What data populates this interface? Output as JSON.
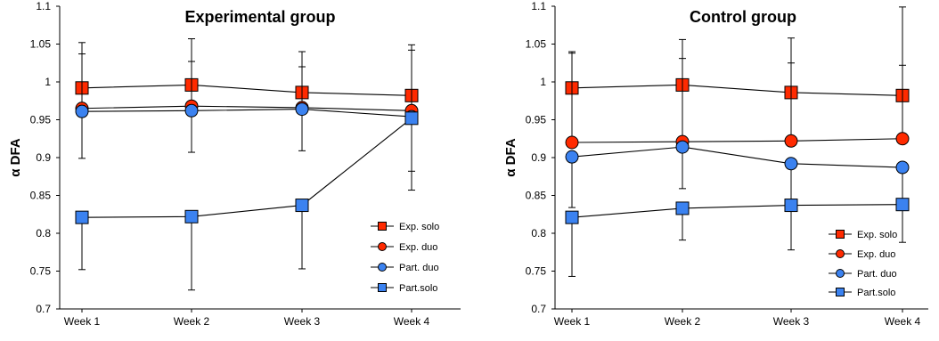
{
  "chart_data": [
    {
      "type": "line",
      "title": "Experimental group",
      "xlabel": "",
      "ylabel": "α DFA",
      "categories": [
        "Week 1",
        "Week 2",
        "Week 3",
        "Week 4"
      ],
      "ylim": [
        0.7,
        1.1
      ],
      "yticks": [
        "0.7",
        "0.75",
        "0.8",
        "0.85",
        "0.9",
        "0.95",
        "1",
        "1.05",
        "1.1"
      ],
      "grid": false,
      "legend_position": "bottom-right",
      "series": [
        {
          "name": "Exp. solo",
          "marker": "square",
          "color": "#ff2a00",
          "values": [
            0.992,
            0.996,
            0.986,
            0.982
          ],
          "error_high": [
            1.052,
            1.057,
            1.04,
            1.049
          ],
          "error_low": [
            0.992,
            0.996,
            0.986,
            0.982
          ]
        },
        {
          "name": "Exp. duo",
          "marker": "circle",
          "color": "#ff2a00",
          "values": [
            0.965,
            0.968,
            0.966,
            0.962
          ],
          "error_high": [
            1.037,
            1.027,
            1.02,
            1.042
          ],
          "error_low": [
            0.965,
            0.968,
            0.966,
            0.962
          ]
        },
        {
          "name": "Part. duo",
          "marker": "circle",
          "color": "#3b82f0",
          "values": [
            0.961,
            0.962,
            0.964,
            0.954
          ],
          "error_high": [
            0.961,
            0.962,
            0.964,
            0.954
          ],
          "error_low": [
            0.899,
            0.907,
            0.909,
            0.882
          ]
        },
        {
          "name": "Part.solo",
          "marker": "square",
          "color": "#3b82f0",
          "values": [
            0.821,
            0.822,
            0.837,
            0.952
          ],
          "error_high": [
            0.821,
            0.822,
            0.837,
            0.952
          ],
          "error_low": [
            0.752,
            0.725,
            0.753,
            0.857
          ]
        }
      ]
    },
    {
      "type": "line",
      "title": "Control group",
      "xlabel": "",
      "ylabel": "α DFA",
      "categories": [
        "Week 1",
        "Week 2",
        "Week 3",
        "Week 4"
      ],
      "ylim": [
        0.7,
        1.1
      ],
      "yticks": [
        "0.7",
        "0.75",
        "0.8",
        "0.85",
        "0.9",
        "0.95",
        "1",
        "1.05",
        "1.1"
      ],
      "grid": false,
      "legend_position": "bottom-right",
      "series": [
        {
          "name": "Exp. solo",
          "marker": "square",
          "color": "#ff2a00",
          "values": [
            0.992,
            0.996,
            0.986,
            0.982
          ],
          "error_high": [
            1.04,
            1.056,
            1.058,
            1.099
          ],
          "error_low": [
            0.992,
            0.996,
            0.986,
            0.982
          ]
        },
        {
          "name": "Exp. duo",
          "marker": "circle",
          "color": "#ff2a00",
          "values": [
            0.92,
            0.921,
            0.922,
            0.925
          ],
          "error_high": [
            1.038,
            1.031,
            1.025,
            1.022
          ],
          "error_low": [
            0.92,
            0.921,
            0.922,
            0.925
          ]
        },
        {
          "name": "Part. duo",
          "marker": "circle",
          "color": "#3b82f0",
          "values": [
            0.901,
            0.914,
            0.892,
            0.887
          ],
          "error_high": [
            0.901,
            0.914,
            0.892,
            0.887
          ],
          "error_low": [
            0.834,
            0.859,
            0.83,
            0.843
          ]
        },
        {
          "name": "Part.solo",
          "marker": "square",
          "color": "#3b82f0",
          "values": [
            0.821,
            0.833,
            0.837,
            0.838
          ],
          "error_high": [
            0.821,
            0.833,
            0.837,
            0.838
          ],
          "error_low": [
            0.743,
            0.791,
            0.778,
            0.788
          ]
        }
      ]
    }
  ]
}
